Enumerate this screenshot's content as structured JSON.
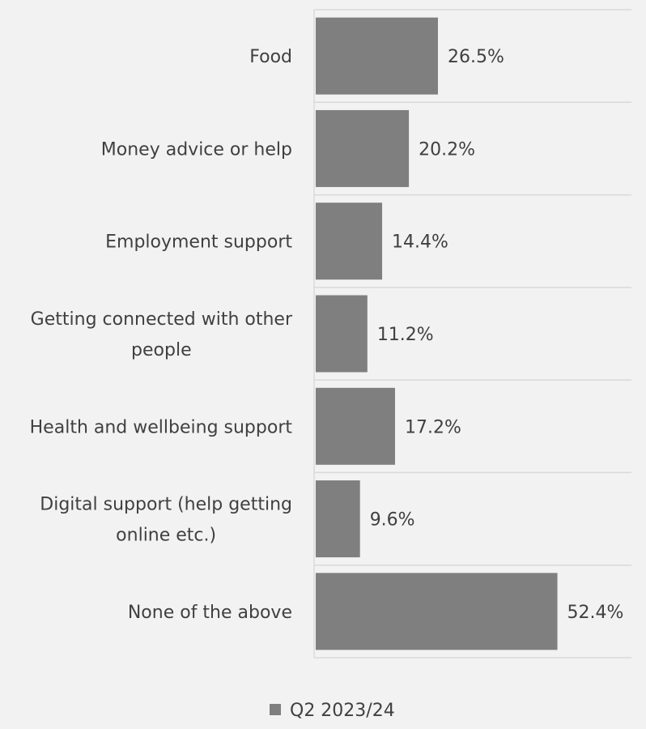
{
  "chart_data": {
    "type": "bar",
    "orientation": "horizontal",
    "title": "",
    "xlabel": "",
    "ylabel": "",
    "categories": [
      "Food",
      "Money advice or help",
      "Employment support",
      "Getting connected with other people",
      "Health and wellbeing support",
      "Digital support (help getting online etc.)",
      "None of the above"
    ],
    "series": [
      {
        "name": "Q2 2023/24",
        "values": [
          26.5,
          20.2,
          14.4,
          11.2,
          17.2,
          9.6,
          52.4
        ],
        "labels": [
          "26.5%",
          "20.2%",
          "14.4%",
          "11.2%",
          "17.2%",
          "9.6%",
          "52.4%"
        ],
        "color": "#7f7f7f"
      }
    ],
    "xlim": [
      0,
      68.8
    ],
    "grid": "horizontal separators",
    "legend": "bottom-center"
  },
  "colors": {
    "background": "#f2f2f2",
    "bar": "#7f7f7f",
    "gridline": "#d9d9d9",
    "text": "#404040"
  }
}
